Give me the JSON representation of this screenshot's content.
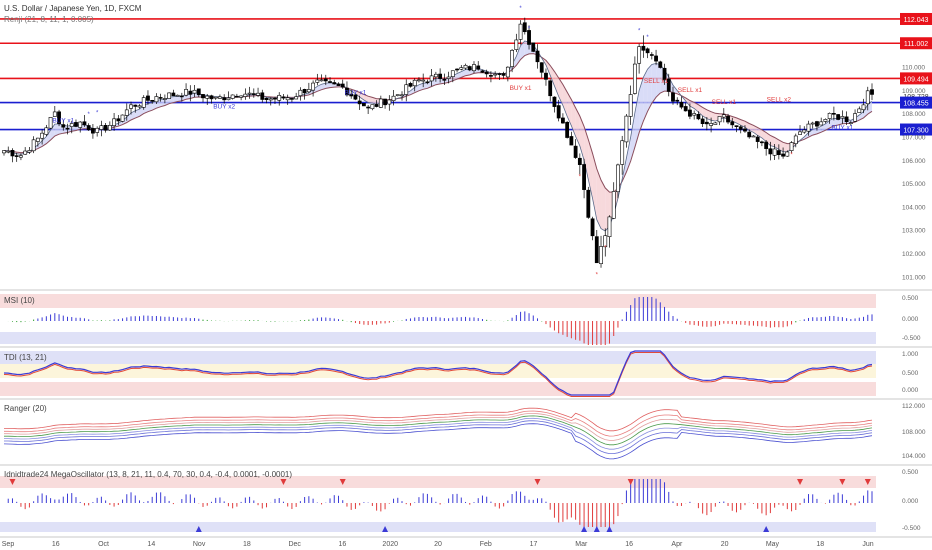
{
  "header": {
    "symbol_title": "U.S. Dollar / Japanese Yen, 1D, FXCM",
    "indicator": "Renji (21, 8, 11, 1, 0.005)"
  },
  "colors": {
    "resistance": "#e8121a",
    "support": "#1a1fd0",
    "pane_border": "#b8b8c8",
    "bull_hist": "#3b3bd6",
    "bear_hist": "#e03b3b",
    "neutral_hist": "#2e9e2e",
    "upper_band": "#f3c4c4",
    "lower_band": "#c9cdf2"
  },
  "price_axis": {
    "ticks": [
      "110.000",
      "109.000",
      "108.000",
      "107.000",
      "106.000",
      "105.000",
      "104.000",
      "103.000",
      "102.000",
      "101.000"
    ]
  },
  "levels": [
    {
      "label": "112.043",
      "value": 112.043,
      "kind": "resistance"
    },
    {
      "label": "111.002",
      "value": 111.002,
      "kind": "resistance"
    },
    {
      "label": "109.494",
      "value": 109.494,
      "kind": "resistance"
    },
    {
      "label": "108.728",
      "value": 108.728,
      "kind": "last"
    },
    {
      "label": "12:45:08",
      "value": 108.5,
      "kind": "timer"
    },
    {
      "label": "108.455",
      "value": 108.455,
      "kind": "support"
    },
    {
      "label": "107.300",
      "value": 107.3,
      "kind": "support"
    }
  ],
  "signals": [
    {
      "text": "BUY x1",
      "date_index": 14,
      "price": 107.6,
      "color": "#3b3bd6"
    },
    {
      "text": "BUY x2",
      "date_index": 52,
      "price": 108.2,
      "color": "#3b3bd6"
    },
    {
      "text": "BUY x1",
      "date_index": 83,
      "price": 108.8,
      "color": "#3b3bd6"
    },
    {
      "text": "BUY x1",
      "date_index": 122,
      "price": 109.0,
      "color": "#e03b3b"
    },
    {
      "text": "SELL x1",
      "date_index": 154,
      "price": 109.3,
      "color": "#e03b3b"
    },
    {
      "text": "SELL x1",
      "date_index": 162,
      "price": 108.9,
      "color": "#e03b3b"
    },
    {
      "text": "SELL x1",
      "date_index": 170,
      "price": 108.4,
      "color": "#e03b3b"
    },
    {
      "text": "SELL x2",
      "date_index": 183,
      "price": 108.5,
      "color": "#e03b3b"
    },
    {
      "text": "BUY x1",
      "date_index": 198,
      "price": 107.3,
      "color": "#3b3bd6"
    }
  ],
  "panes": [
    {
      "title": "MSI (10)",
      "ticks": [
        "0.500",
        "0.000",
        "-0.500"
      ]
    },
    {
      "title": "TDI (13, 21)",
      "ticks": [
        "1.000",
        "0.500",
        "0.000"
      ]
    },
    {
      "title": "Ranger (20)",
      "ticks": [
        "112.000",
        "108.000",
        "104.000"
      ]
    },
    {
      "title": "Idnidtrade24 MegaOscillator (13, 8, 21, 11, 0.4, 70, 30, 0.4, -0.4, 0.0001, -0.0001)",
      "ticks": [
        "0.500",
        "0.000",
        "-0.500"
      ]
    }
  ],
  "time_axis": {
    "labels": [
      "Sep",
      "16",
      "Oct",
      "14",
      "Nov",
      "18",
      "Dec",
      "16",
      "2020",
      "20",
      "Feb",
      "17",
      "Mar",
      "16",
      "Apr",
      "20",
      "May",
      "18",
      "Jun"
    ]
  },
  "chart_data": {
    "type": "candlestick",
    "title": "U.S. Dollar / Japanese Yen, 1D, FXCM",
    "x_start": "2019-08-26",
    "x_end": "2020-06-05",
    "ylim": [
      100.5,
      112.6
    ],
    "anchors": [
      [
        0,
        106.4
      ],
      [
        4,
        106.2
      ],
      [
        8,
        106.9
      ],
      [
        12,
        108.0
      ],
      [
        14,
        107.4
      ],
      [
        18,
        107.6
      ],
      [
        22,
        107.2
      ],
      [
        26,
        107.6
      ],
      [
        30,
        108.3
      ],
      [
        36,
        108.7
      ],
      [
        44,
        108.9
      ],
      [
        50,
        108.6
      ],
      [
        56,
        108.9
      ],
      [
        62,
        108.6
      ],
      [
        68,
        108.7
      ],
      [
        74,
        109.3
      ],
      [
        80,
        109.1
      ],
      [
        86,
        108.2
      ],
      [
        92,
        108.7
      ],
      [
        98,
        109.4
      ],
      [
        104,
        109.6
      ],
      [
        108,
        109.9
      ],
      [
        112,
        110.0
      ],
      [
        118,
        109.5
      ],
      [
        122,
        111.9
      ],
      [
        126,
        110.3
      ],
      [
        130,
        108.4
      ],
      [
        136,
        105.8
      ],
      [
        140,
        101.6
      ],
      [
        143,
        103.4
      ],
      [
        146,
        106.9
      ],
      [
        150,
        111.0
      ],
      [
        154,
        110.4
      ],
      [
        158,
        108.5
      ],
      [
        162,
        108.0
      ],
      [
        166,
        107.4
      ],
      [
        170,
        107.8
      ],
      [
        174,
        107.2
      ],
      [
        180,
        106.5
      ],
      [
        184,
        106.1
      ],
      [
        188,
        107.2
      ],
      [
        192,
        107.6
      ],
      [
        196,
        107.9
      ],
      [
        200,
        107.7
      ],
      [
        204,
        108.8
      ]
    ]
  }
}
